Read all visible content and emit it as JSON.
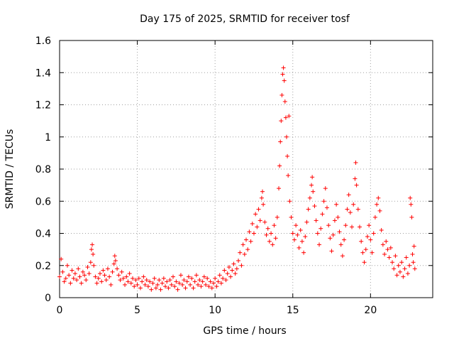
{
  "chart_data": {
    "type": "scatter",
    "title": "Day 175 of 2025, SRMTID for receiver tosf",
    "xlabel": "GPS time / hours",
    "ylabel": "SRMTID / TECUs",
    "xlim": [
      0,
      24
    ],
    "ylim": [
      0,
      1.6
    ],
    "xticks": [
      0,
      5,
      10,
      15,
      20
    ],
    "yticks": [
      0,
      0.2,
      0.4,
      0.6,
      0.8,
      1,
      1.2,
      1.4,
      1.6
    ],
    "xtick_labels": [
      "0",
      "5",
      "10",
      "15",
      "20"
    ],
    "ytick_labels": [
      "0",
      "0.2",
      "0.4",
      "0.6",
      "0.8",
      "1",
      "1.2",
      "1.4",
      "1.6"
    ],
    "grid": true,
    "marker": "+",
    "color": "#ff0000",
    "series": [
      {
        "name": "SRMTID",
        "points": [
          [
            0.0,
            0.13
          ],
          [
            0.1,
            0.24
          ],
          [
            0.2,
            0.16
          ],
          [
            0.3,
            0.1
          ],
          [
            0.4,
            0.12
          ],
          [
            0.5,
            0.2
          ],
          [
            0.6,
            0.14
          ],
          [
            0.7,
            0.09
          ],
          [
            0.8,
            0.17
          ],
          [
            0.9,
            0.12
          ],
          [
            1.0,
            0.15
          ],
          [
            1.1,
            0.11
          ],
          [
            1.2,
            0.18
          ],
          [
            1.3,
            0.13
          ],
          [
            1.4,
            0.09
          ],
          [
            1.5,
            0.16
          ],
          [
            1.6,
            0.14
          ],
          [
            1.7,
            0.11
          ],
          [
            1.8,
            0.19
          ],
          [
            1.9,
            0.15
          ],
          [
            2.0,
            0.22
          ],
          [
            2.05,
            0.3
          ],
          [
            2.1,
            0.33
          ],
          [
            2.15,
            0.27
          ],
          [
            2.2,
            0.2
          ],
          [
            2.3,
            0.13
          ],
          [
            2.4,
            0.09
          ],
          [
            2.5,
            0.12
          ],
          [
            2.6,
            0.15
          ],
          [
            2.7,
            0.1
          ],
          [
            2.8,
            0.17
          ],
          [
            2.9,
            0.14
          ],
          [
            3.0,
            0.11
          ],
          [
            3.1,
            0.18
          ],
          [
            3.2,
            0.13
          ],
          [
            3.3,
            0.08
          ],
          [
            3.4,
            0.16
          ],
          [
            3.5,
            0.21
          ],
          [
            3.55,
            0.26
          ],
          [
            3.6,
            0.23
          ],
          [
            3.7,
            0.18
          ],
          [
            3.8,
            0.14
          ],
          [
            3.9,
            0.11
          ],
          [
            4.0,
            0.16
          ],
          [
            4.1,
            0.12
          ],
          [
            4.2,
            0.08
          ],
          [
            4.3,
            0.13
          ],
          [
            4.4,
            0.1
          ],
          [
            4.5,
            0.15
          ],
          [
            4.6,
            0.09
          ],
          [
            4.7,
            0.12
          ],
          [
            4.8,
            0.07
          ],
          [
            4.9,
            0.11
          ],
          [
            5.0,
            0.08
          ],
          [
            5.1,
            0.12
          ],
          [
            5.2,
            0.06
          ],
          [
            5.3,
            0.1
          ],
          [
            5.4,
            0.13
          ],
          [
            5.5,
            0.08
          ],
          [
            5.6,
            0.11
          ],
          [
            5.7,
            0.07
          ],
          [
            5.8,
            0.1
          ],
          [
            5.9,
            0.05
          ],
          [
            6.0,
            0.09
          ],
          [
            6.1,
            0.12
          ],
          [
            6.2,
            0.06
          ],
          [
            6.3,
            0.08
          ],
          [
            6.4,
            0.11
          ],
          [
            6.5,
            0.05
          ],
          [
            6.6,
            0.09
          ],
          [
            6.7,
            0.12
          ],
          [
            6.8,
            0.07
          ],
          [
            6.9,
            0.1
          ],
          [
            7.0,
            0.06
          ],
          [
            7.1,
            0.11
          ],
          [
            7.2,
            0.08
          ],
          [
            7.3,
            0.13
          ],
          [
            7.4,
            0.07
          ],
          [
            7.5,
            0.1
          ],
          [
            7.6,
            0.05
          ],
          [
            7.7,
            0.09
          ],
          [
            7.8,
            0.14
          ],
          [
            7.9,
            0.08
          ],
          [
            8.0,
            0.11
          ],
          [
            8.1,
            0.06
          ],
          [
            8.2,
            0.1
          ],
          [
            8.3,
            0.13
          ],
          [
            8.4,
            0.08
          ],
          [
            8.5,
            0.12
          ],
          [
            8.6,
            0.06
          ],
          [
            8.7,
            0.1
          ],
          [
            8.8,
            0.14
          ],
          [
            8.9,
            0.08
          ],
          [
            9.0,
            0.11
          ],
          [
            9.1,
            0.07
          ],
          [
            9.2,
            0.1
          ],
          [
            9.3,
            0.13
          ],
          [
            9.4,
            0.08
          ],
          [
            9.5,
            0.12
          ],
          [
            9.6,
            0.07
          ],
          [
            9.7,
            0.1
          ],
          [
            9.8,
            0.06
          ],
          [
            9.9,
            0.09
          ],
          [
            10.0,
            0.12
          ],
          [
            10.1,
            0.07
          ],
          [
            10.2,
            0.1
          ],
          [
            10.3,
            0.14
          ],
          [
            10.4,
            0.09
          ],
          [
            10.5,
            0.12
          ],
          [
            10.6,
            0.17
          ],
          [
            10.7,
            0.11
          ],
          [
            10.8,
            0.15
          ],
          [
            10.9,
            0.19
          ],
          [
            11.0,
            0.13
          ],
          [
            11.1,
            0.17
          ],
          [
            11.2,
            0.21
          ],
          [
            11.3,
            0.15
          ],
          [
            11.4,
            0.18
          ],
          [
            11.5,
            0.23
          ],
          [
            11.6,
            0.28
          ],
          [
            11.7,
            0.2
          ],
          [
            11.8,
            0.33
          ],
          [
            11.9,
            0.27
          ],
          [
            12.0,
            0.36
          ],
          [
            12.1,
            0.3
          ],
          [
            12.2,
            0.41
          ],
          [
            12.3,
            0.35
          ],
          [
            12.4,
            0.46
          ],
          [
            12.5,
            0.4
          ],
          [
            12.6,
            0.52
          ],
          [
            12.7,
            0.44
          ],
          [
            12.8,
            0.55
          ],
          [
            12.9,
            0.48
          ],
          [
            13.0,
            0.62
          ],
          [
            13.05,
            0.66
          ],
          [
            13.1,
            0.58
          ],
          [
            13.2,
            0.47
          ],
          [
            13.3,
            0.39
          ],
          [
            13.4,
            0.43
          ],
          [
            13.5,
            0.35
          ],
          [
            13.6,
            0.4
          ],
          [
            13.7,
            0.33
          ],
          [
            13.8,
            0.45
          ],
          [
            13.9,
            0.37
          ],
          [
            14.0,
            0.5
          ],
          [
            14.1,
            0.68
          ],
          [
            14.15,
            0.82
          ],
          [
            14.2,
            0.97
          ],
          [
            14.25,
            1.1
          ],
          [
            14.3,
            1.26
          ],
          [
            14.35,
            1.39
          ],
          [
            14.4,
            1.43
          ],
          [
            14.45,
            1.35
          ],
          [
            14.5,
            1.22
          ],
          [
            14.55,
            1.12
          ],
          [
            14.6,
            1.0
          ],
          [
            14.65,
            0.88
          ],
          [
            14.7,
            0.76
          ],
          [
            14.75,
            1.13
          ],
          [
            14.8,
            0.6
          ],
          [
            14.9,
            0.5
          ],
          [
            15.0,
            0.4
          ],
          [
            15.1,
            0.36
          ],
          [
            15.2,
            0.45
          ],
          [
            15.3,
            0.39
          ],
          [
            15.4,
            0.31
          ],
          [
            15.5,
            0.42
          ],
          [
            15.6,
            0.35
          ],
          [
            15.7,
            0.28
          ],
          [
            15.8,
            0.38
          ],
          [
            15.9,
            0.47
          ],
          [
            16.0,
            0.55
          ],
          [
            16.1,
            0.62
          ],
          [
            16.2,
            0.7
          ],
          [
            16.25,
            0.75
          ],
          [
            16.3,
            0.66
          ],
          [
            16.4,
            0.57
          ],
          [
            16.5,
            0.48
          ],
          [
            16.6,
            0.4
          ],
          [
            16.7,
            0.33
          ],
          [
            16.8,
            0.43
          ],
          [
            16.9,
            0.52
          ],
          [
            17.0,
            0.6
          ],
          [
            17.1,
            0.68
          ],
          [
            17.2,
            0.56
          ],
          [
            17.3,
            0.45
          ],
          [
            17.4,
            0.37
          ],
          [
            17.5,
            0.29
          ],
          [
            17.6,
            0.39
          ],
          [
            17.7,
            0.48
          ],
          [
            17.8,
            0.58
          ],
          [
            17.9,
            0.5
          ],
          [
            18.0,
            0.41
          ],
          [
            18.1,
            0.33
          ],
          [
            18.2,
            0.26
          ],
          [
            18.3,
            0.36
          ],
          [
            18.4,
            0.45
          ],
          [
            18.5,
            0.55
          ],
          [
            18.6,
            0.64
          ],
          [
            18.7,
            0.53
          ],
          [
            18.8,
            0.44
          ],
          [
            18.9,
            0.58
          ],
          [
            19.0,
            0.74
          ],
          [
            19.05,
            0.84
          ],
          [
            19.1,
            0.7
          ],
          [
            19.2,
            0.55
          ],
          [
            19.3,
            0.44
          ],
          [
            19.4,
            0.35
          ],
          [
            19.5,
            0.28
          ],
          [
            19.6,
            0.22
          ],
          [
            19.7,
            0.3
          ],
          [
            19.8,
            0.38
          ],
          [
            19.9,
            0.45
          ],
          [
            20.0,
            0.36
          ],
          [
            20.1,
            0.28
          ],
          [
            20.2,
            0.4
          ],
          [
            20.3,
            0.5
          ],
          [
            20.4,
            0.58
          ],
          [
            20.5,
            0.62
          ],
          [
            20.6,
            0.54
          ],
          [
            20.7,
            0.42
          ],
          [
            20.8,
            0.33
          ],
          [
            20.9,
            0.27
          ],
          [
            21.0,
            0.35
          ],
          [
            21.1,
            0.3
          ],
          [
            21.2,
            0.25
          ],
          [
            21.3,
            0.31
          ],
          [
            21.4,
            0.22
          ],
          [
            21.5,
            0.18
          ],
          [
            21.6,
            0.26
          ],
          [
            21.7,
            0.14
          ],
          [
            21.8,
            0.2
          ],
          [
            21.9,
            0.16
          ],
          [
            22.0,
            0.22
          ],
          [
            22.1,
            0.13
          ],
          [
            22.2,
            0.18
          ],
          [
            22.3,
            0.25
          ],
          [
            22.4,
            0.15
          ],
          [
            22.5,
            0.2
          ],
          [
            22.55,
            0.62
          ],
          [
            22.6,
            0.58
          ],
          [
            22.65,
            0.5
          ],
          [
            22.7,
            0.27
          ],
          [
            22.75,
            0.22
          ],
          [
            22.8,
            0.32
          ],
          [
            22.85,
            0.18
          ]
        ]
      }
    ]
  }
}
